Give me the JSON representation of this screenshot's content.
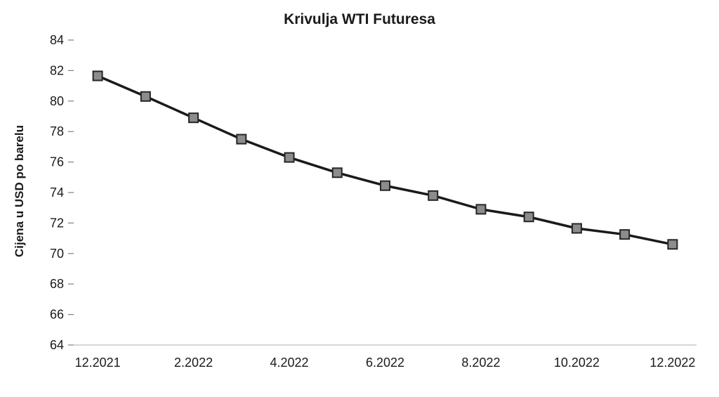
{
  "chart_data": {
    "type": "line",
    "title": "Krivulja WTI Futuresa",
    "xlabel": "",
    "ylabel": "Cijena u USD po barelu",
    "x": [
      "12.2021",
      "1.2022",
      "2.2022",
      "3.2022",
      "4.2022",
      "5.2022",
      "6.2022",
      "7.2022",
      "8.2022",
      "9.2022",
      "10.2022",
      "11.2022",
      "12.2022"
    ],
    "x_tick_labels_shown": [
      "12.2021",
      "2.2022",
      "4.2022",
      "6.2022",
      "8.2022",
      "10.2022",
      "12.2022"
    ],
    "series": [
      {
        "name": "WTI Futures",
        "values": [
          81.65,
          80.3,
          78.9,
          77.5,
          76.3,
          75.3,
          74.45,
          73.8,
          72.9,
          72.4,
          71.65,
          71.25,
          70.6
        ]
      }
    ],
    "ylim": [
      64,
      84
    ],
    "y_ticks": [
      64,
      66,
      68,
      70,
      72,
      74,
      76,
      78,
      80,
      82,
      84
    ],
    "grid": false,
    "legend": "none",
    "style": {
      "line_color": "#1a1a1a",
      "marker_shape": "square",
      "marker_fill": "#8c8c8c",
      "marker_stroke": "#262626",
      "axis_line_color": "#bfbfbf",
      "tick_mark_color": "#7f7f7f",
      "text_color": "#1a1a1a",
      "background": "#ffffff"
    }
  }
}
